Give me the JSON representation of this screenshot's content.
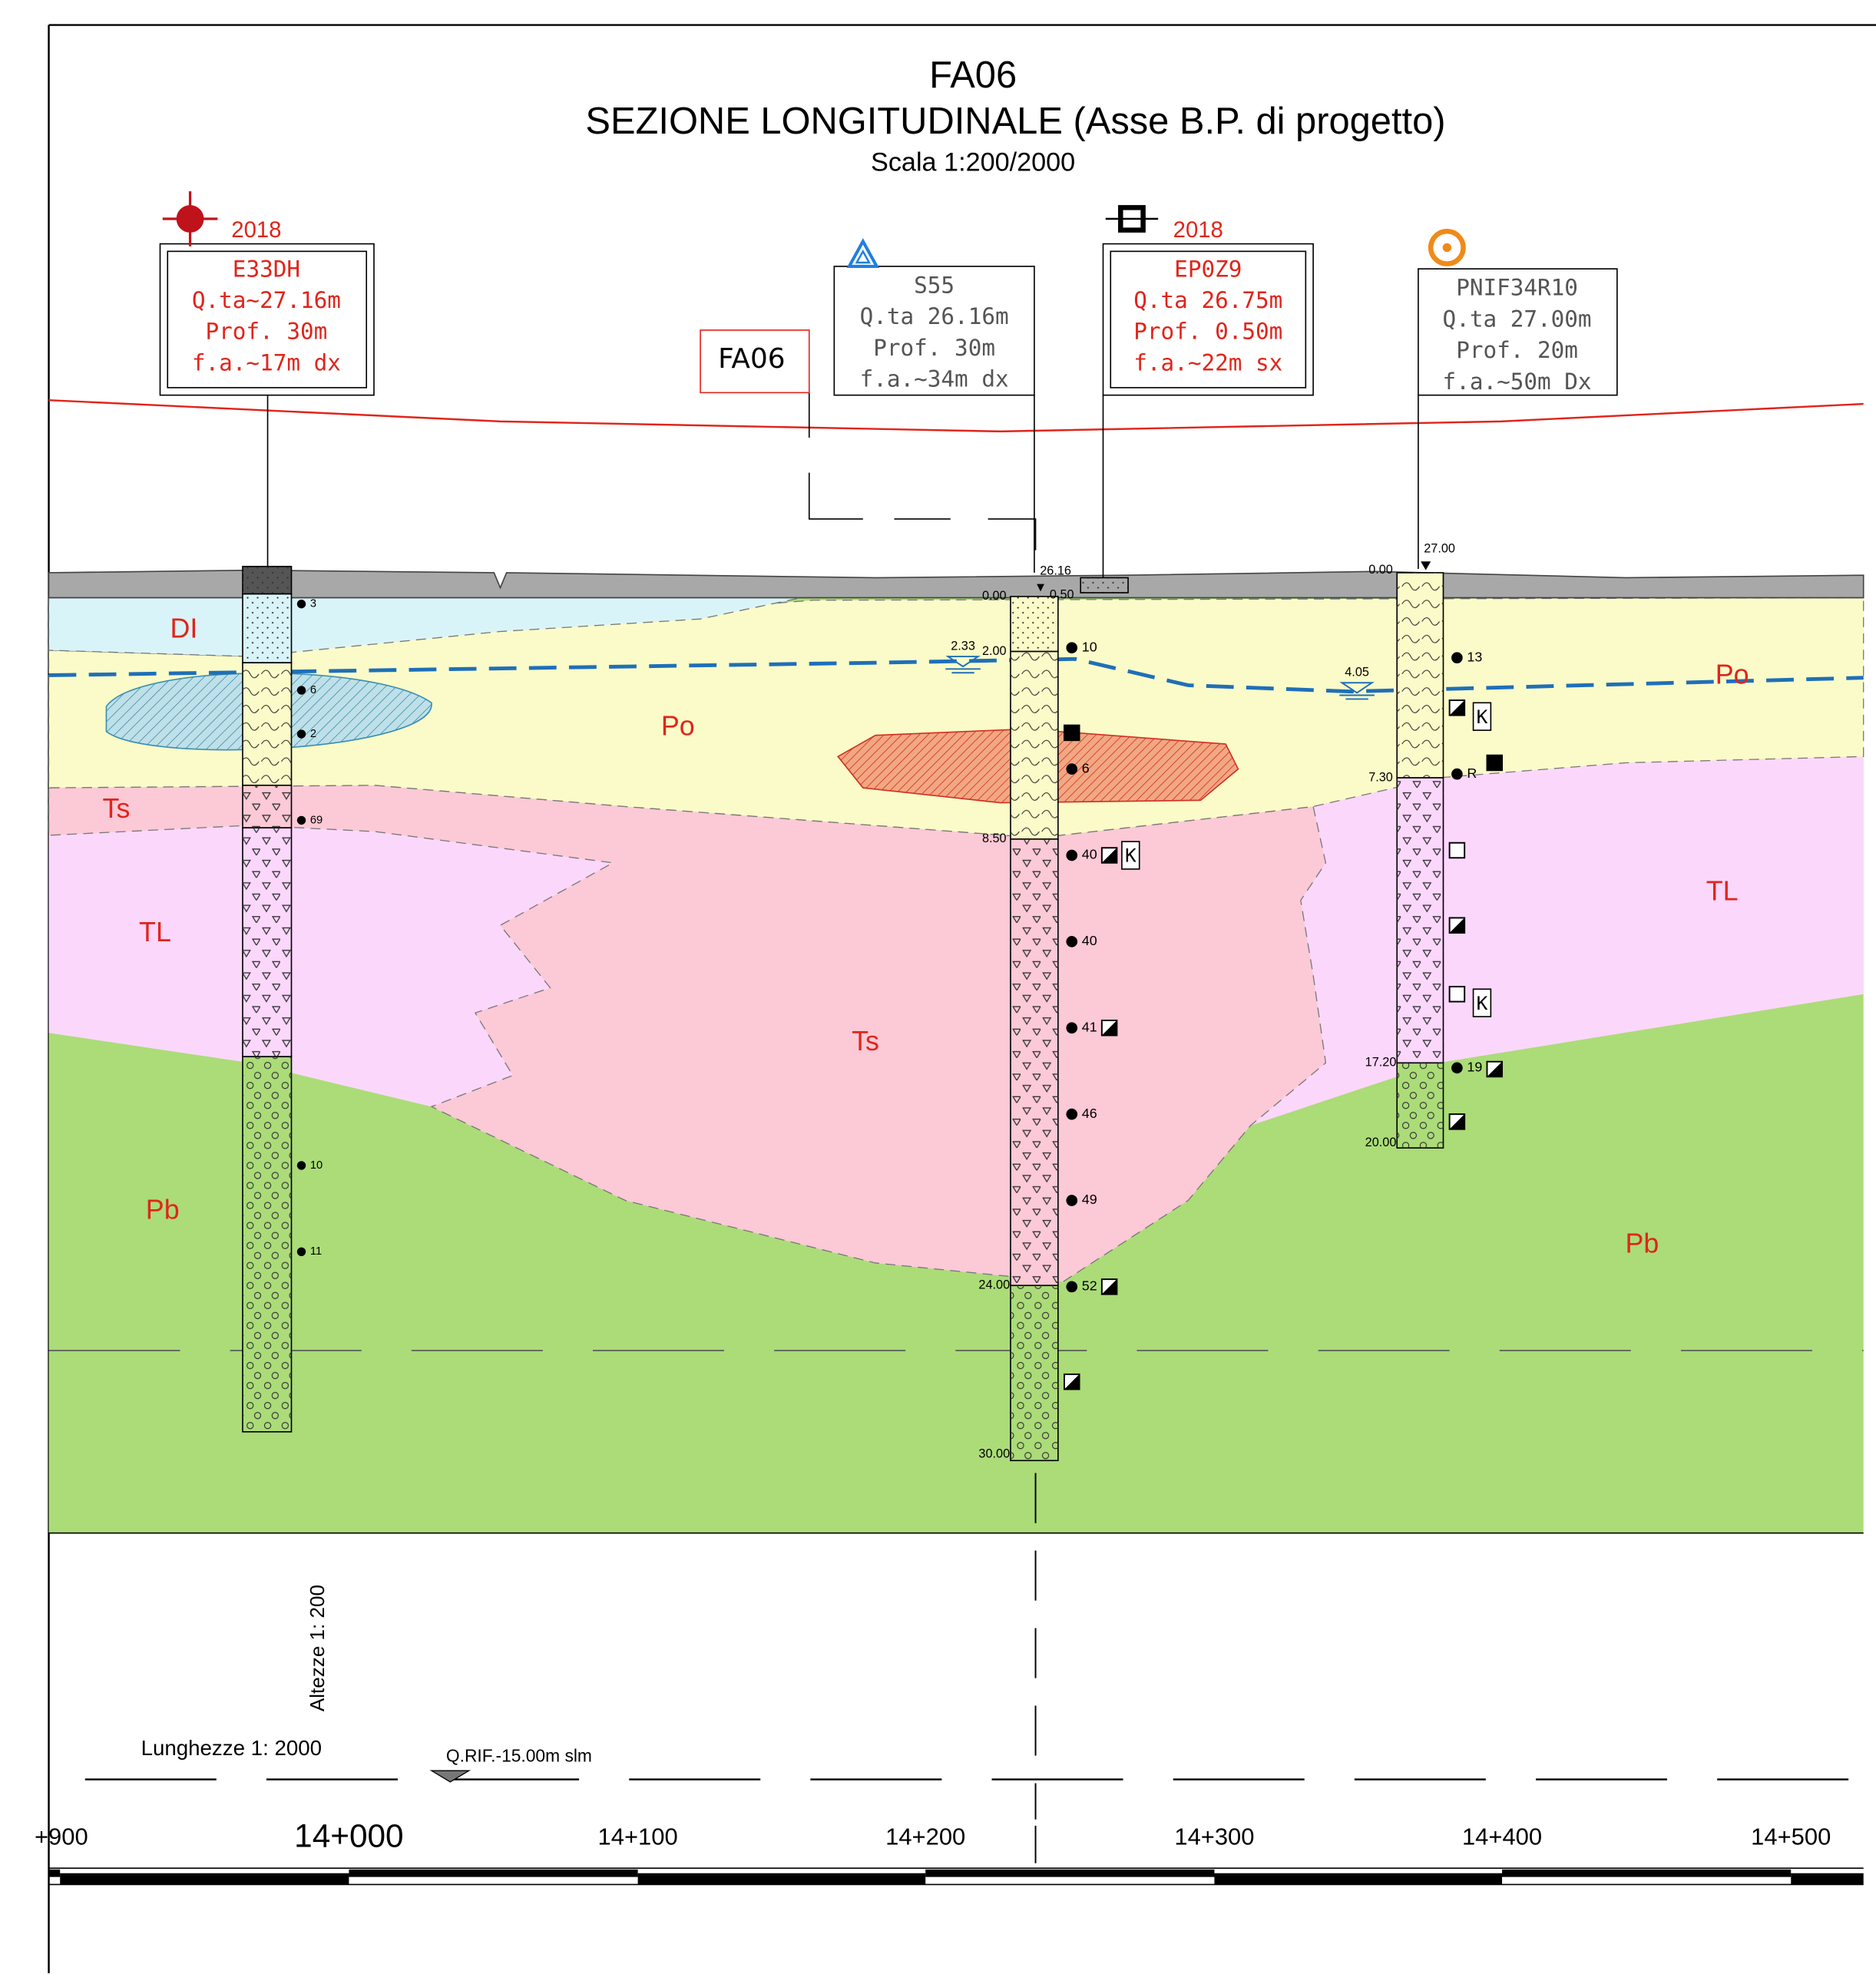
{
  "header": {
    "code": "FA06",
    "title": "SEZIONE LONGITUDINALE (Asse B.P. di progetto)",
    "scale": "Scala 1:200/2000"
  },
  "section_tag": "FA06",
  "boreholes": [
    {
      "year": "2018",
      "lines": [
        "E33DH",
        "Q.ta~27.16m",
        "Prof. 30m",
        "f.a.~17m dx"
      ],
      "spt": [
        "3",
        "6",
        "2",
        "69",
        "10",
        "11"
      ]
    },
    {
      "lines": [
        "S55",
        "Q.ta 26.16m",
        "Prof. 30m",
        "f.a.~34m dx"
      ],
      "top": [
        "26.16",
        "0.50"
      ],
      "depths": [
        "0.00",
        "2.00",
        "8.50",
        "24.00",
        "30.00"
      ],
      "water": "2.33",
      "spt": [
        "10",
        "6",
        "40",
        "40",
        "41",
        "46",
        "49",
        "52"
      ],
      "marks": [
        "K"
      ]
    },
    {
      "year": "2018",
      "lines": [
        "EP0Z9",
        "Q.ta 26.75m",
        "Prof. 0.50m",
        "f.a.~22m sx"
      ]
    },
    {
      "lines": [
        "PNIF34R10",
        "Q.ta 27.00m",
        "Prof. 20m",
        "f.a.~50m Dx"
      ],
      "top": [
        "27.00"
      ],
      "depths": [
        "0.00",
        "7.30",
        "17.20",
        "20.00"
      ],
      "water": "4.05",
      "spt": [
        "13",
        "R",
        "19"
      ],
      "marks": [
        "K",
        "K"
      ]
    }
  ],
  "layers": [
    "DI",
    "Po",
    "Ts",
    "TL",
    "Ts",
    "Pb",
    "Po",
    "TL",
    "Pb"
  ],
  "stations": [
    "+900",
    "14+000",
    "14+100",
    "14+200",
    "14+300",
    "14+400",
    "14+500"
  ],
  "notes": {
    "heights": "Altezze 1: 200",
    "lengths": "Lunghezze 1: 2000",
    "reference": "Q.RIF.-15.00m slm"
  }
}
